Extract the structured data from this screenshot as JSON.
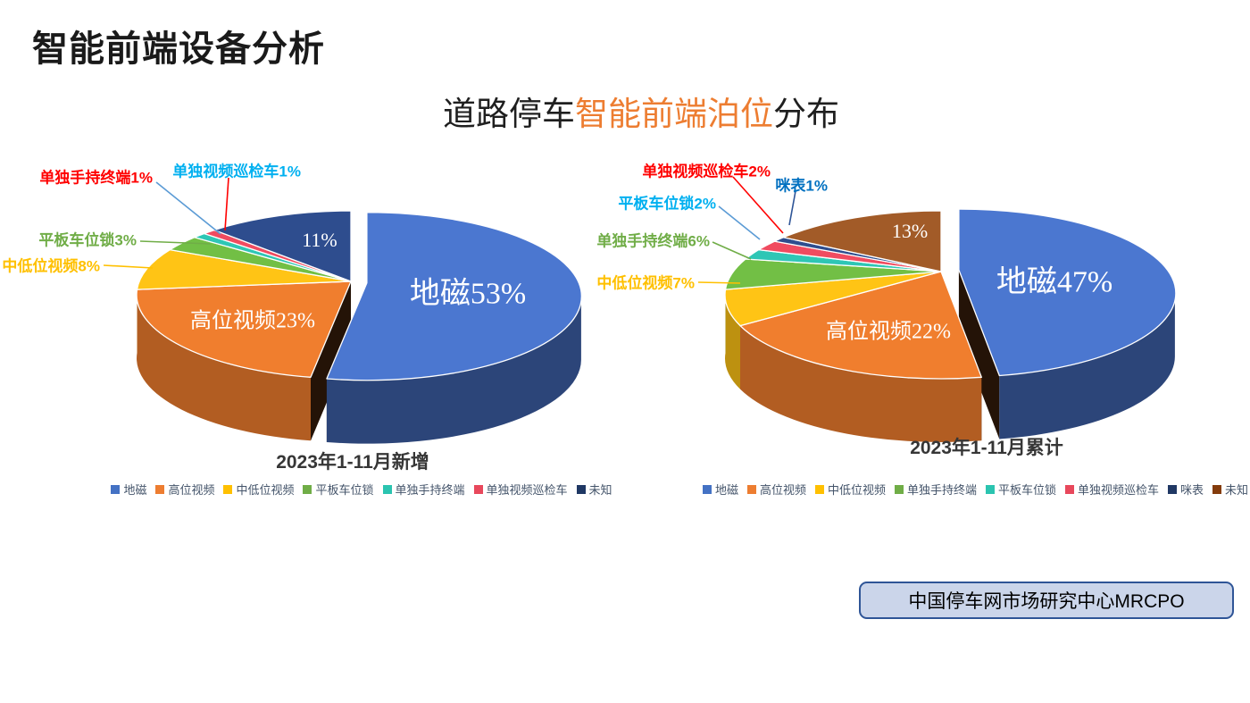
{
  "title": "智能前端设备分析",
  "subtitle": {
    "prefix": "道路停车",
    "highlight": "智能前端泊位",
    "suffix": "分布",
    "highlight_color": "#ED7D31"
  },
  "source_box": {
    "label": "中国停车网市场研究中心MRCPO",
    "bg_color": "#CBD5EA",
    "border_color": "#2F5597"
  },
  "chart_data": [
    {
      "type": "pie",
      "caption": "2023年1-11月新增",
      "categories": [
        "地磁",
        "高位视频",
        "中低位视频",
        "平板车位锁",
        "单独手持终端",
        "单独视频巡检车",
        "未知"
      ],
      "values": [
        53,
        23,
        8,
        3,
        1,
        1,
        11
      ],
      "colors": [
        "#4B77D0",
        "#F07E2E",
        "#FFC415",
        "#72BF45",
        "#2EC6B5",
        "#F04B60",
        "#2E4D8E"
      ],
      "legend_position": "bottom",
      "legend": [
        {
          "label": "地磁",
          "color": "#4472C4"
        },
        {
          "label": "高位视频",
          "color": "#ED7D31"
        },
        {
          "label": "中低位视频",
          "color": "#FFC000"
        },
        {
          "label": "平板车位锁",
          "color": "#70AD47"
        },
        {
          "label": "单独手持终端",
          "color": "#2BC4B0"
        },
        {
          "label": "单独视频巡检车",
          "color": "#E8485C"
        },
        {
          "label": "未知",
          "color": "#1F3864"
        }
      ],
      "inner_labels": [
        {
          "text": "地磁53%"
        },
        {
          "text": "高位视频23%"
        },
        {
          "text": "11%"
        }
      ],
      "callouts": [
        {
          "text": "单独手持终端1%",
          "color": "#FF0000",
          "line_color": "#5B9BD5"
        },
        {
          "text": "单独视频巡检车1%",
          "color": "#00B0F0",
          "line_color": "#FF0000"
        },
        {
          "text": "平板车位锁3%",
          "color": "#70AD47",
          "line_color": "#70AD47"
        },
        {
          "text": "中低位视频8%",
          "color": "#FFC000",
          "line_color": "#FFC000"
        }
      ]
    },
    {
      "type": "pie",
      "caption": "2023年1-11月累计",
      "categories": [
        "地磁",
        "高位视频",
        "中低位视频",
        "单独手持终端",
        "平板车位锁",
        "单独视频巡检车",
        "咪表",
        "未知"
      ],
      "values": [
        47,
        22,
        7,
        6,
        2,
        2,
        1,
        13
      ],
      "colors": [
        "#4B77D0",
        "#F07E2E",
        "#FFC415",
        "#72BF45",
        "#2EC6B5",
        "#F04B60",
        "#2E4D8E",
        "#A25B28"
      ],
      "legend_position": "bottom",
      "legend": [
        {
          "label": "地磁",
          "color": "#4472C4"
        },
        {
          "label": "高位视频",
          "color": "#ED7D31"
        },
        {
          "label": "中低位视频",
          "color": "#FFC000"
        },
        {
          "label": "单独手持终端",
          "color": "#70AD47"
        },
        {
          "label": "平板车位锁",
          "color": "#2BC4B0"
        },
        {
          "label": "单独视频巡检车",
          "color": "#E8485C"
        },
        {
          "label": "咪表",
          "color": "#203864"
        },
        {
          "label": "未知",
          "color": "#843C0C"
        }
      ],
      "inner_labels": [
        {
          "text": "地磁47%"
        },
        {
          "text": "高位视频22%"
        },
        {
          "text": "13%"
        }
      ],
      "callouts": [
        {
          "text": "单独视频巡检车2%",
          "color": "#FF0000",
          "line_color": "#FF0000"
        },
        {
          "text": "咪表1%",
          "color": "#0070C0",
          "line_color": "#2F5597"
        },
        {
          "text": "平板车位锁2%",
          "color": "#00B0F0",
          "line_color": "#5B9BD5"
        },
        {
          "text": "单独手持终端6%",
          "color": "#70AD47",
          "line_color": "#70AD47"
        },
        {
          "text": "中低位视频7%",
          "color": "#FFC000",
          "line_color": "#FFC000"
        }
      ]
    }
  ]
}
